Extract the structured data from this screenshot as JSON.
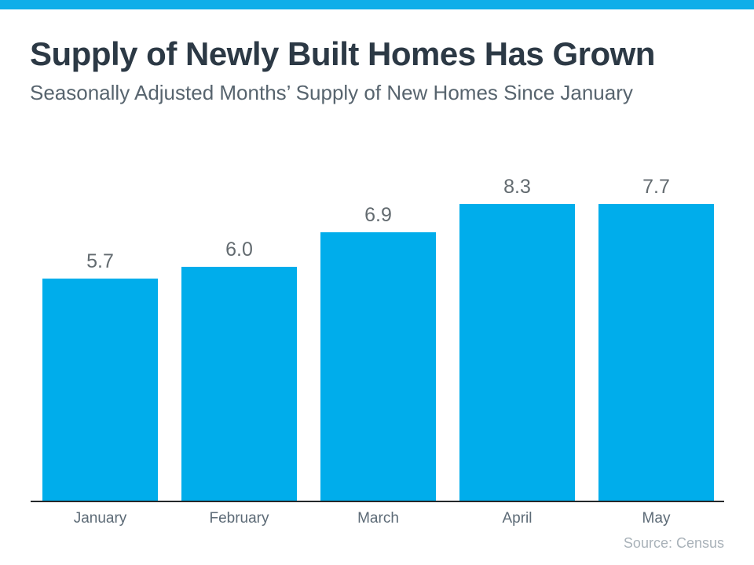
{
  "header": {
    "title": "Supply of Newly Built Homes Has Grown",
    "subtitle": "Seasonally Adjusted Months’ Supply of New Homes Since January"
  },
  "chart_data": {
    "type": "bar",
    "title": "Supply of Newly Built Homes Has Grown",
    "subtitle": "Seasonally Adjusted Months’ Supply of New Homes Since January",
    "categories": [
      "January",
      "February",
      "March",
      "April",
      "May"
    ],
    "values": [
      5.7,
      6.0,
      6.9,
      8.3,
      7.7
    ],
    "value_labels": [
      "5.7",
      "6.0",
      "6.9",
      "8.3",
      "7.7"
    ],
    "xlabel": "",
    "ylabel": "",
    "ylim": [
      0,
      8.3
    ],
    "grid": false,
    "legend": false,
    "bar_color": "#00ADEB",
    "source": "Source: Census"
  },
  "colors": {
    "accent_bar": "#0FAEE9",
    "bar_fill": "#00ADEB",
    "title_text": "#2c3945",
    "subtitle_text": "#57646e",
    "value_label_text": "#636b70",
    "category_label_text": "#5c6a76",
    "axis_line": "#25282a",
    "source_text": "#a9b2b9"
  },
  "footer": {
    "source": "Source: Census"
  }
}
